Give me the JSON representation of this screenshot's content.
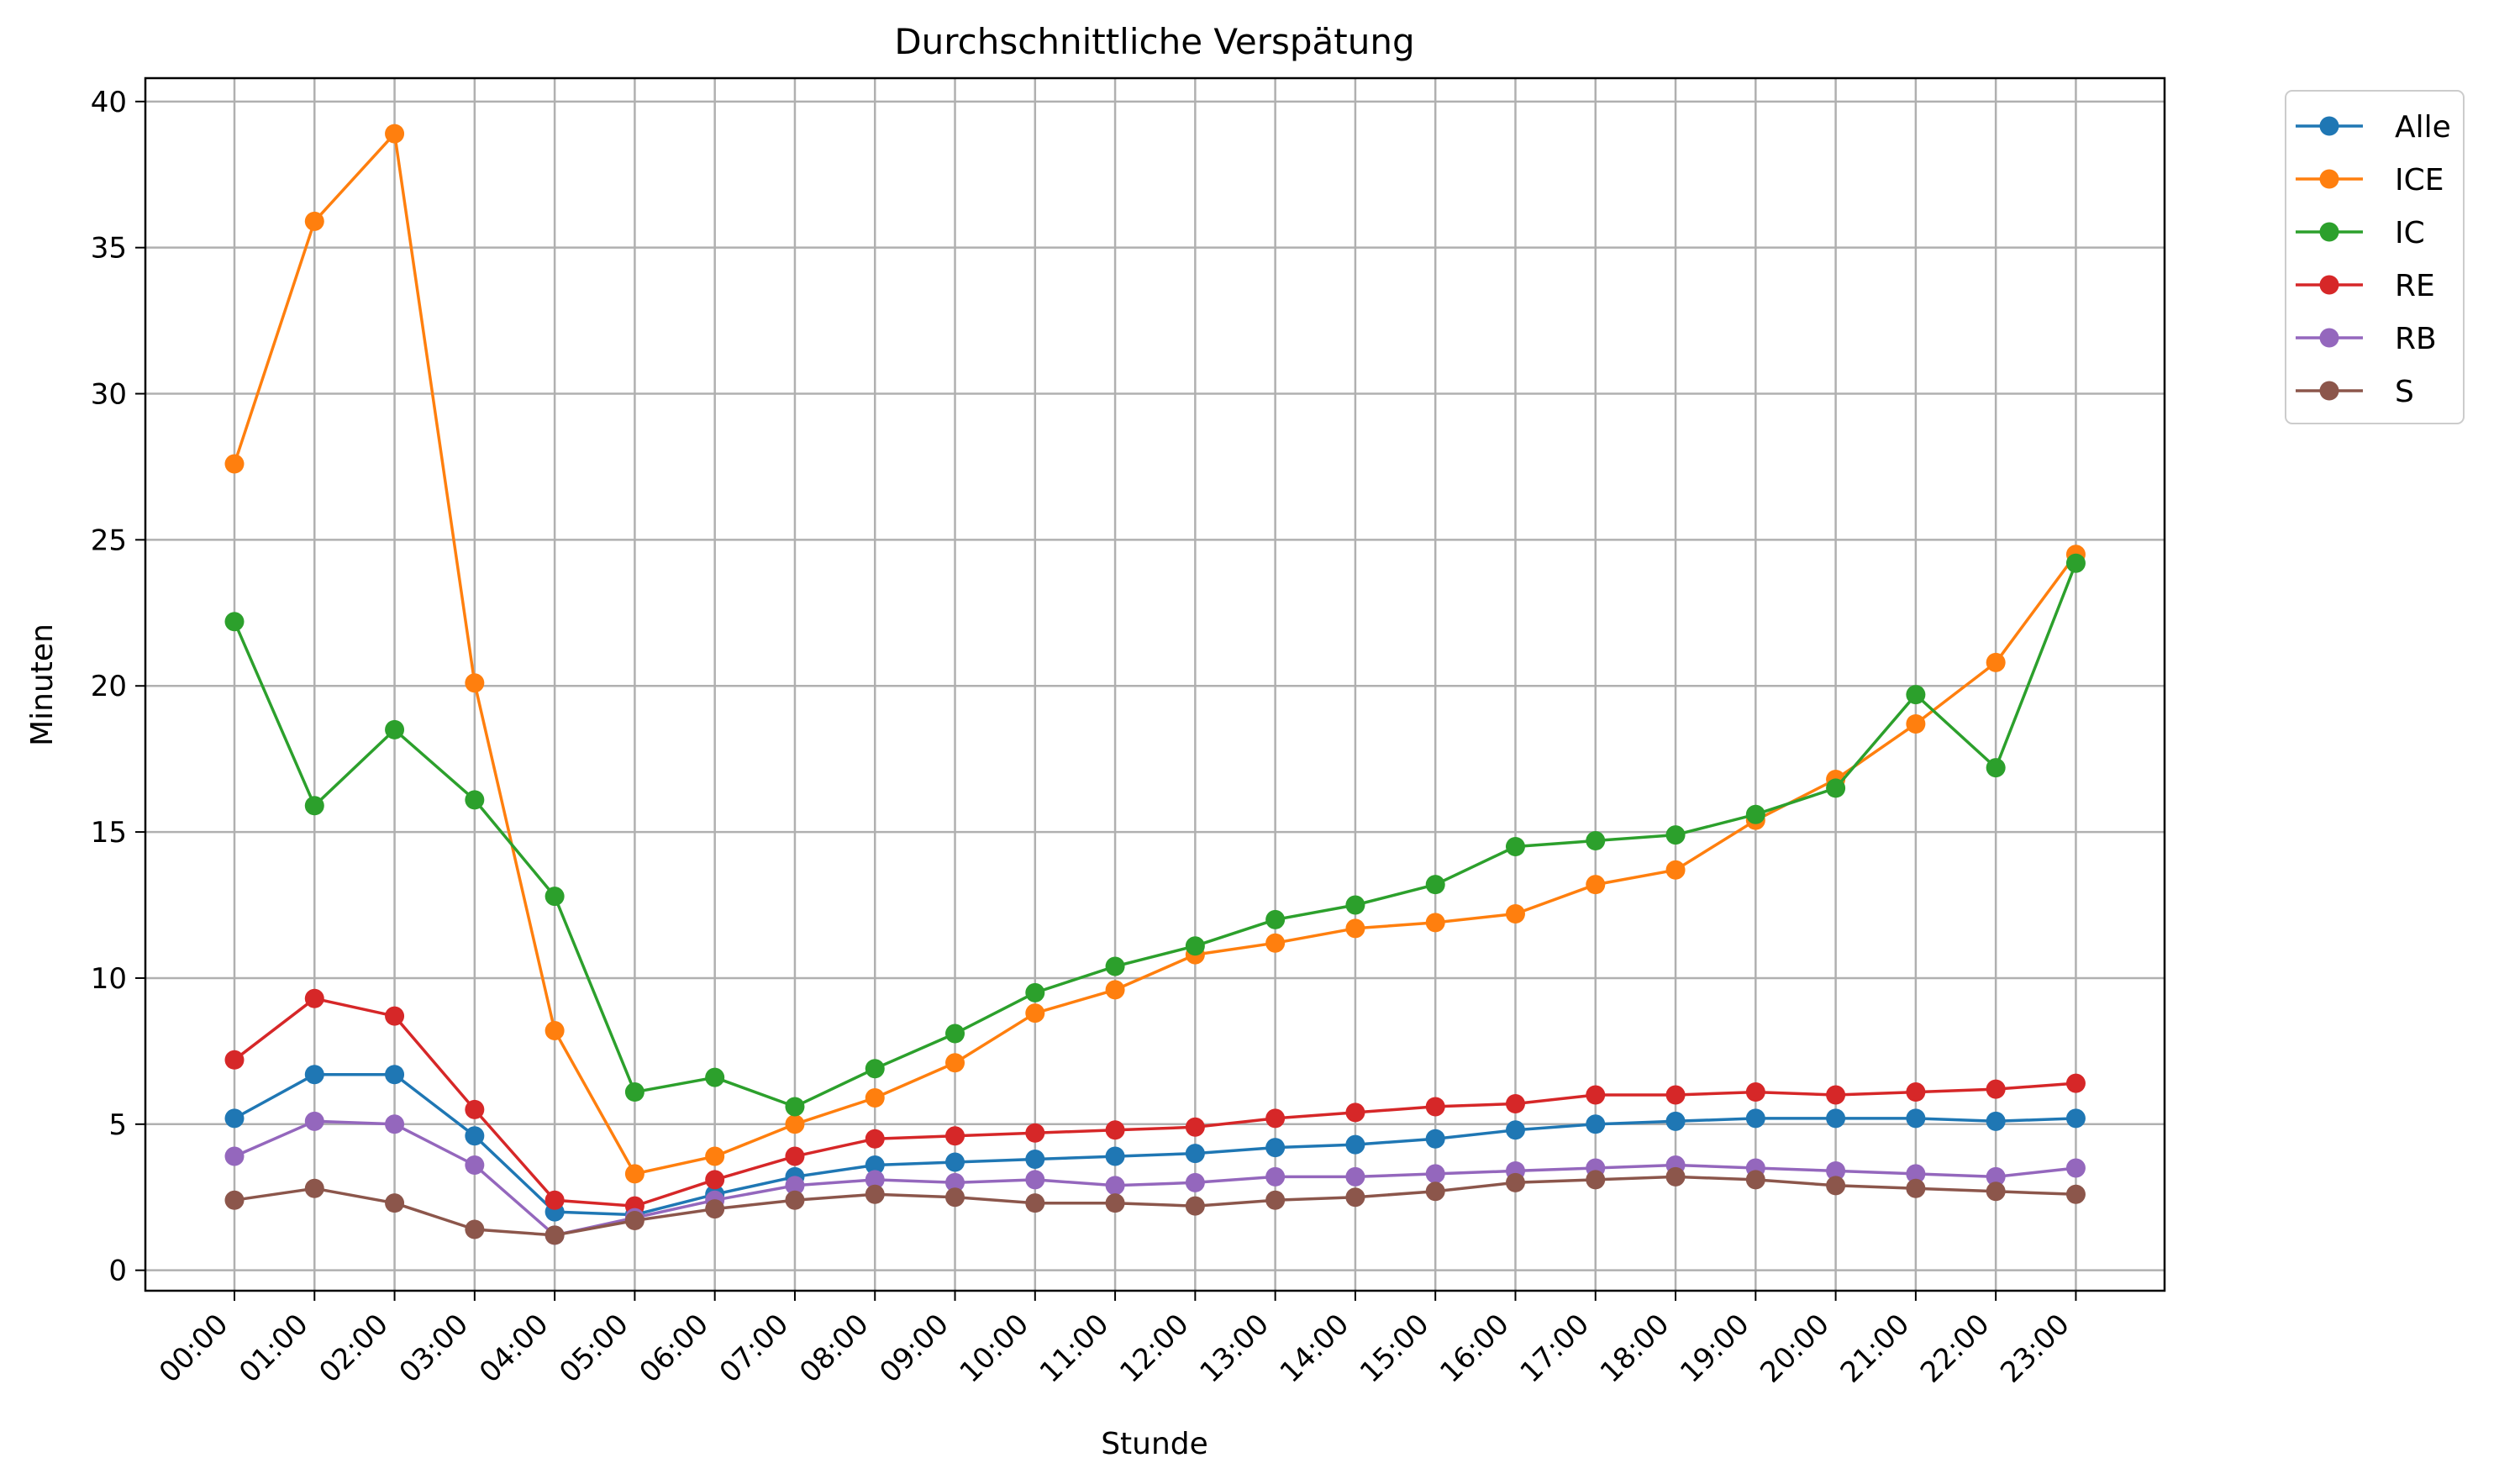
{
  "chart_data": {
    "type": "line",
    "title": "Durchschnittliche Verspätung",
    "xlabel": "Stunde",
    "ylabel": "Minuten",
    "ylim": [
      -0.7,
      40.8
    ],
    "yticks": [
      0,
      5,
      10,
      15,
      20,
      25,
      30,
      35,
      40
    ],
    "grid": true,
    "legend_position": "outside-top-right",
    "x": [
      "00:00",
      "01:00",
      "02:00",
      "03:00",
      "04:00",
      "05:00",
      "06:00",
      "07:00",
      "08:00",
      "09:00",
      "10:00",
      "11:00",
      "12:00",
      "13:00",
      "14:00",
      "15:00",
      "16:00",
      "17:00",
      "18:00",
      "19:00",
      "20:00",
      "21:00",
      "22:00",
      "23:00"
    ],
    "series": [
      {
        "name": "Alle",
        "color": "#1f77b4",
        "values": [
          5.2,
          6.7,
          6.7,
          4.6,
          2.0,
          1.9,
          2.6,
          3.2,
          3.6,
          3.7,
          3.8,
          3.9,
          4.0,
          4.2,
          4.3,
          4.5,
          4.8,
          5.0,
          5.1,
          5.2,
          5.2,
          5.2,
          5.1,
          5.2
        ]
      },
      {
        "name": "ICE",
        "color": "#ff7f0e",
        "values": [
          27.6,
          35.9,
          38.9,
          20.1,
          8.2,
          3.3,
          3.9,
          5.0,
          5.9,
          7.1,
          8.8,
          9.6,
          10.8,
          11.2,
          11.7,
          11.9,
          12.2,
          13.2,
          13.7,
          15.4,
          16.8,
          18.7,
          20.8,
          24.5
        ]
      },
      {
        "name": "IC",
        "color": "#2ca02c",
        "values": [
          22.2,
          15.9,
          18.5,
          16.1,
          12.8,
          6.1,
          6.6,
          5.6,
          6.9,
          8.1,
          9.5,
          10.4,
          11.1,
          12.0,
          12.5,
          13.2,
          14.5,
          14.7,
          14.9,
          15.6,
          16.5,
          19.7,
          17.2,
          24.2
        ]
      },
      {
        "name": "RE",
        "color": "#d62728",
        "values": [
          7.2,
          9.3,
          8.7,
          5.5,
          2.4,
          2.2,
          3.1,
          3.9,
          4.5,
          4.6,
          4.7,
          4.8,
          4.9,
          5.2,
          5.4,
          5.6,
          5.7,
          6.0,
          6.0,
          6.1,
          6.0,
          6.1,
          6.2,
          6.4
        ]
      },
      {
        "name": "RB",
        "color": "#9467bd",
        "values": [
          3.9,
          5.1,
          5.0,
          3.6,
          1.2,
          1.8,
          2.4,
          2.9,
          3.1,
          3.0,
          3.1,
          2.9,
          3.0,
          3.2,
          3.2,
          3.3,
          3.4,
          3.5,
          3.6,
          3.5,
          3.4,
          3.3,
          3.2,
          3.5
        ]
      },
      {
        "name": "S",
        "color": "#8c564b",
        "values": [
          2.4,
          2.8,
          2.3,
          1.4,
          1.2,
          1.7,
          2.1,
          2.4,
          2.6,
          2.5,
          2.3,
          2.3,
          2.2,
          2.4,
          2.5,
          2.7,
          3.0,
          3.1,
          3.2,
          3.1,
          2.9,
          2.8,
          2.7,
          2.6
        ]
      }
    ]
  }
}
